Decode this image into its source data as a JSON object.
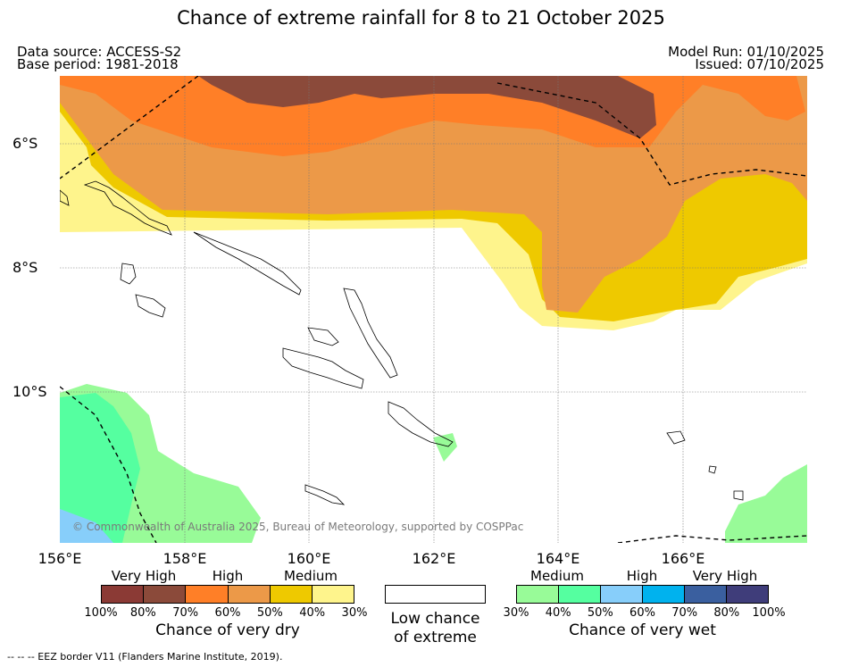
{
  "title": "Chance of extreme rainfall for 8 to 21 October 2025",
  "header": {
    "data_source": "Data source: ACCESS-S2",
    "base_period": "Base period: 1981-2018",
    "model_run": "Model Run: 01/10/2025",
    "issued": "Issued: 07/10/2025"
  },
  "axes": {
    "lat_labels": [
      "6°S",
      "8°S",
      "10°S"
    ],
    "lon_labels": [
      "156°E",
      "158°E",
      "160°E",
      "162°E",
      "164°E",
      "166°E"
    ]
  },
  "map": {
    "copyright": "© Commonwealth of Australia 2025, Bureau of Meteorology, supported by COSPPac",
    "footer_note": "--  --  -- EEZ border V11 (Flanders Marine Institute, 2019)."
  },
  "legend": {
    "dry": {
      "categories": [
        "Very High",
        "High",
        "Medium"
      ],
      "colors": [
        "#8b3a35",
        "#8b4a3a",
        "#ff7f27",
        "#ec9948",
        "#eec900",
        "#fef48c"
      ],
      "ticks": [
        "100%",
        "80%",
        "70%",
        "60%",
        "50%",
        "40%",
        "30%"
      ],
      "label": "Chance of very dry"
    },
    "low": {
      "label_line1": "Low chance",
      "label_line2": "of extreme",
      "color": "#ffffff"
    },
    "wet": {
      "categories": [
        "Medium",
        "High",
        "Very High"
      ],
      "colors": [
        "#98fb98",
        "#55ffa0",
        "#87cefa",
        "#00b2ee",
        "#3a5f9f",
        "#3f3d7a"
      ],
      "ticks": [
        "30%",
        "40%",
        "50%",
        "60%",
        "70%",
        "80%",
        "100%"
      ],
      "label": "Chance of very wet"
    }
  }
}
